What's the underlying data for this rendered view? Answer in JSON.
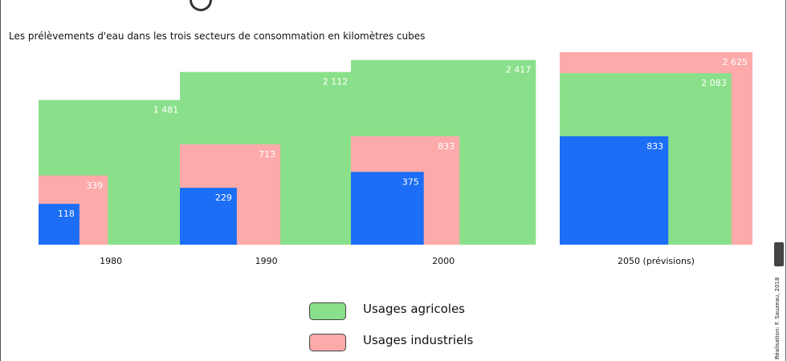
{
  "subtitle": "Les prélèvements d'eau dans les trois secteurs de consommation en kilomètres cubes",
  "legend": [
    {
      "label": "Usages agricoles",
      "color": "#8ae08a"
    },
    {
      "label": "Usages industriels",
      "color": "#fdaaaa"
    }
  ],
  "credit": "Réalisation: F. Sauzeau, 2018",
  "colors": {
    "agricole": "#8ae08a",
    "industriel": "#fdaaaa",
    "domestique": "#1b6ef5"
  },
  "chart_data": {
    "type": "bar",
    "categories": [
      "1980",
      "1990",
      "2000",
      "2050 (prévisions)"
    ],
    "series": [
      {
        "name": "Usages agricoles",
        "values": [
          1481,
          2112,
          2417,
          2083
        ],
        "labels": [
          "1 481",
          "2 112",
          "2 417",
          "2 083"
        ]
      },
      {
        "name": "Usages industriels",
        "values": [
          339,
          713,
          833,
          2625
        ],
        "labels": [
          "339",
          "713",
          "833",
          "2 625"
        ]
      },
      {
        "name": "",
        "values": [
          118,
          229,
          375,
          833
        ],
        "labels": [
          "118",
          "229",
          "375",
          "833"
        ]
      }
    ],
    "title": "Les prélèvements d'eau dans les trois secteurs de consommation en kilomètres cubes"
  }
}
